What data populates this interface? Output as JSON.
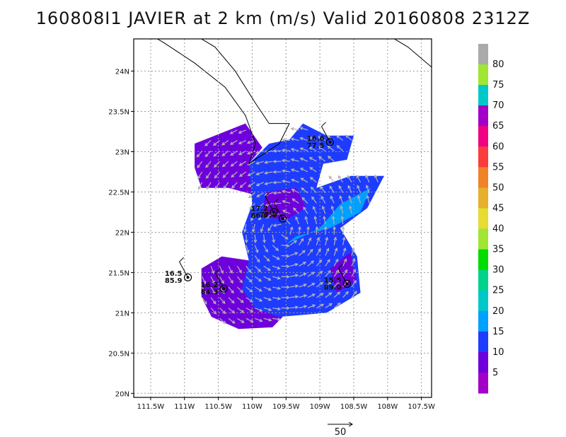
{
  "title": "160808I1 JAVIER at 2 km (m/s) Valid 20160808 2312Z",
  "chart_data": {
    "type": "heatmap",
    "title": "160808I1 JAVIER at 2 km (m/s) Valid 20160808 2312Z",
    "xlabel": "",
    "ylabel": "",
    "xlim": [
      -111.75,
      -107.35
    ],
    "ylim": [
      19.95,
      24.4
    ],
    "grid": true,
    "x_ticks": [
      "111.5W",
      "111W",
      "110.5W",
      "110W",
      "109.5W",
      "109W",
      "108.5W",
      "108W",
      "107.5W"
    ],
    "y_ticks": [
      "20N",
      "20.5N",
      "21N",
      "21.5N",
      "22N",
      "22.5N",
      "23N",
      "23.5N",
      "24N"
    ],
    "colorbar": {
      "labels": [
        "5",
        "10",
        "15",
        "20",
        "25",
        "30",
        "35",
        "40",
        "45",
        "50",
        "55",
        "60",
        "65",
        "70",
        "75",
        "80"
      ],
      "colors": [
        "#a000c8",
        "#6e00dc",
        "#1e3cff",
        "#00a0ff",
        "#00c8c8",
        "#00d28c",
        "#00dc00",
        "#a0e632",
        "#e6dc32",
        "#e6af2d",
        "#f08228",
        "#fa3c3c",
        "#f00082",
        "#a000c8",
        "#00c8c8",
        "#a0e632",
        "#aaaaaa"
      ]
    },
    "reference_vector": "50",
    "stations": [
      {
        "lon": -108.85,
        "lat": 23.12,
        "labels": [
          "16.6",
          "77.5"
        ]
      },
      {
        "lon": -109.68,
        "lat": 22.25,
        "labels": [
          "17.2",
          "86.8"
        ]
      },
      {
        "lon": -109.55,
        "lat": 22.17,
        "labels": [
          "77.8"
        ]
      },
      {
        "lon": -110.95,
        "lat": 21.44,
        "labels": [
          "16.5",
          "85.9"
        ]
      },
      {
        "lon": -110.42,
        "lat": 21.3,
        "labels": [
          "16.2",
          "84.3"
        ]
      },
      {
        "lon": -108.6,
        "lat": 21.36,
        "labels": [
          "15.5",
          "89.0"
        ]
      }
    ],
    "speed_regions": [
      {
        "class": "5-10",
        "color": "#6e00dc",
        "polygon": [
          [
            -110.85,
            23.1
          ],
          [
            -110.1,
            23.35
          ],
          [
            -109.85,
            23.05
          ],
          [
            -110.05,
            22.85
          ],
          [
            -109.65,
            22.7
          ],
          [
            -109.9,
            22.45
          ],
          [
            -110.35,
            22.55
          ],
          [
            -110.75,
            22.55
          ],
          [
            -110.85,
            22.8
          ]
        ]
      },
      {
        "class": "5-10",
        "color": "#6e00dc",
        "polygon": [
          [
            -110.75,
            21.55
          ],
          [
            -110.45,
            21.7
          ],
          [
            -110.05,
            21.65
          ],
          [
            -109.9,
            21.3
          ],
          [
            -109.85,
            21.05
          ],
          [
            -109.55,
            20.95
          ],
          [
            -109.7,
            20.82
          ],
          [
            -110.2,
            20.8
          ],
          [
            -110.6,
            20.95
          ],
          [
            -110.75,
            21.2
          ]
        ]
      },
      {
        "class": "10-15",
        "color": "#1e3cff",
        "polygon": [
          [
            -110.05,
            22.85
          ],
          [
            -109.75,
            23.1
          ],
          [
            -109.45,
            23.15
          ],
          [
            -109.25,
            23.35
          ],
          [
            -108.9,
            23.2
          ],
          [
            -108.5,
            23.2
          ],
          [
            -108.6,
            22.9
          ],
          [
            -108.95,
            22.85
          ],
          [
            -109.05,
            22.55
          ],
          [
            -108.55,
            22.7
          ],
          [
            -108.05,
            22.7
          ],
          [
            -108.3,
            22.3
          ],
          [
            -108.7,
            22.05
          ],
          [
            -108.45,
            21.7
          ],
          [
            -108.4,
            21.25
          ],
          [
            -108.9,
            21.0
          ],
          [
            -109.6,
            20.95
          ],
          [
            -109.95,
            21.05
          ],
          [
            -110.15,
            21.3
          ],
          [
            -110.05,
            21.65
          ],
          [
            -110.15,
            22.0
          ],
          [
            -110.0,
            22.35
          ]
        ]
      },
      {
        "class": "5-10",
        "color": "#6e00dc",
        "polygon": [
          [
            -109.8,
            22.5
          ],
          [
            -109.35,
            22.55
          ],
          [
            -109.2,
            22.3
          ],
          [
            -109.5,
            22.15
          ],
          [
            -109.85,
            22.2
          ]
        ]
      },
      {
        "class": "5-10",
        "color": "#6e00dc",
        "polygon": [
          [
            -108.75,
            21.25
          ],
          [
            -108.45,
            21.4
          ],
          [
            -108.55,
            21.75
          ],
          [
            -108.85,
            21.55
          ]
        ]
      },
      {
        "class": "15-20",
        "color": "#00a0ff",
        "polygon": [
          [
            -109.5,
            21.85
          ],
          [
            -109.0,
            22.05
          ],
          [
            -108.7,
            22.35
          ],
          [
            -108.25,
            22.55
          ],
          [
            -108.4,
            22.25
          ],
          [
            -108.85,
            22.05
          ],
          [
            -109.35,
            21.95
          ]
        ]
      }
    ]
  }
}
